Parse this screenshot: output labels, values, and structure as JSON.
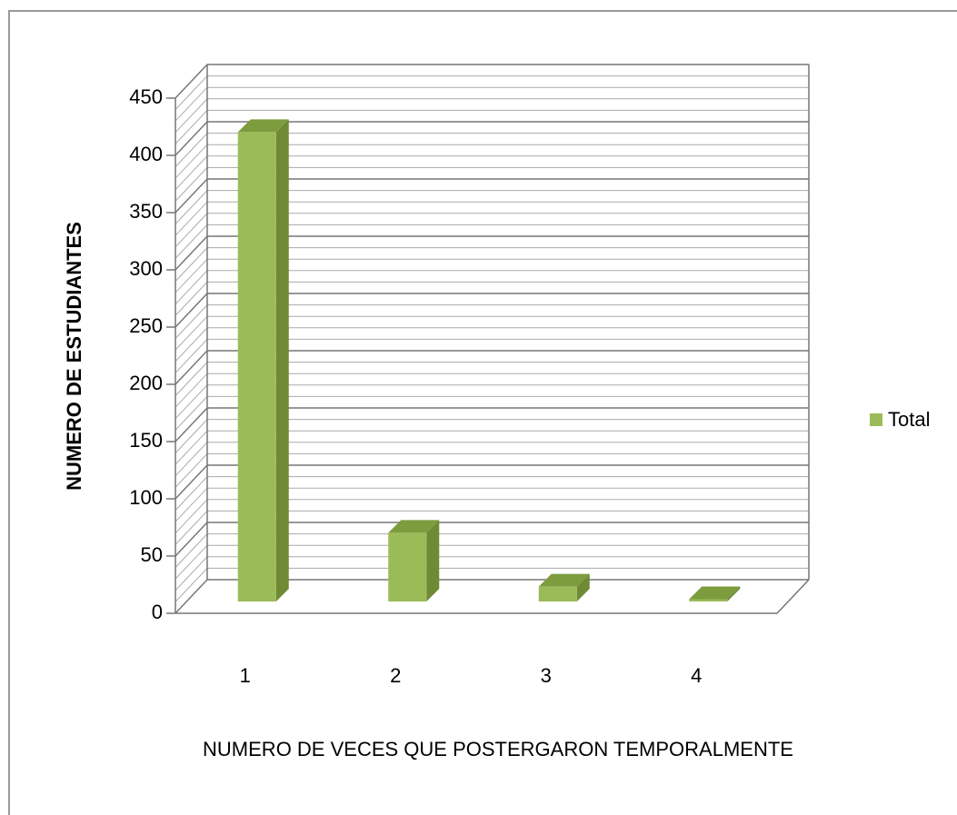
{
  "chart_data": {
    "type": "bar3d",
    "y_axis_label": "NUMERO DE ESTUDIANTES",
    "x_axis_label": "NUMERO DE VECES QUE POSTERGARON TEMPORALMENTE",
    "categories": [
      "1",
      "2",
      "3",
      "4"
    ],
    "series": [
      {
        "name": "Total",
        "color": "#9bbb59",
        "values": [
          410,
          60,
          13,
          2
        ]
      }
    ],
    "ylim": [
      0,
      450
    ],
    "yticks": [
      0,
      50,
      100,
      150,
      200,
      250,
      300,
      350,
      400,
      450
    ],
    "grid": true,
    "minor_grid": true,
    "legend": "right"
  }
}
